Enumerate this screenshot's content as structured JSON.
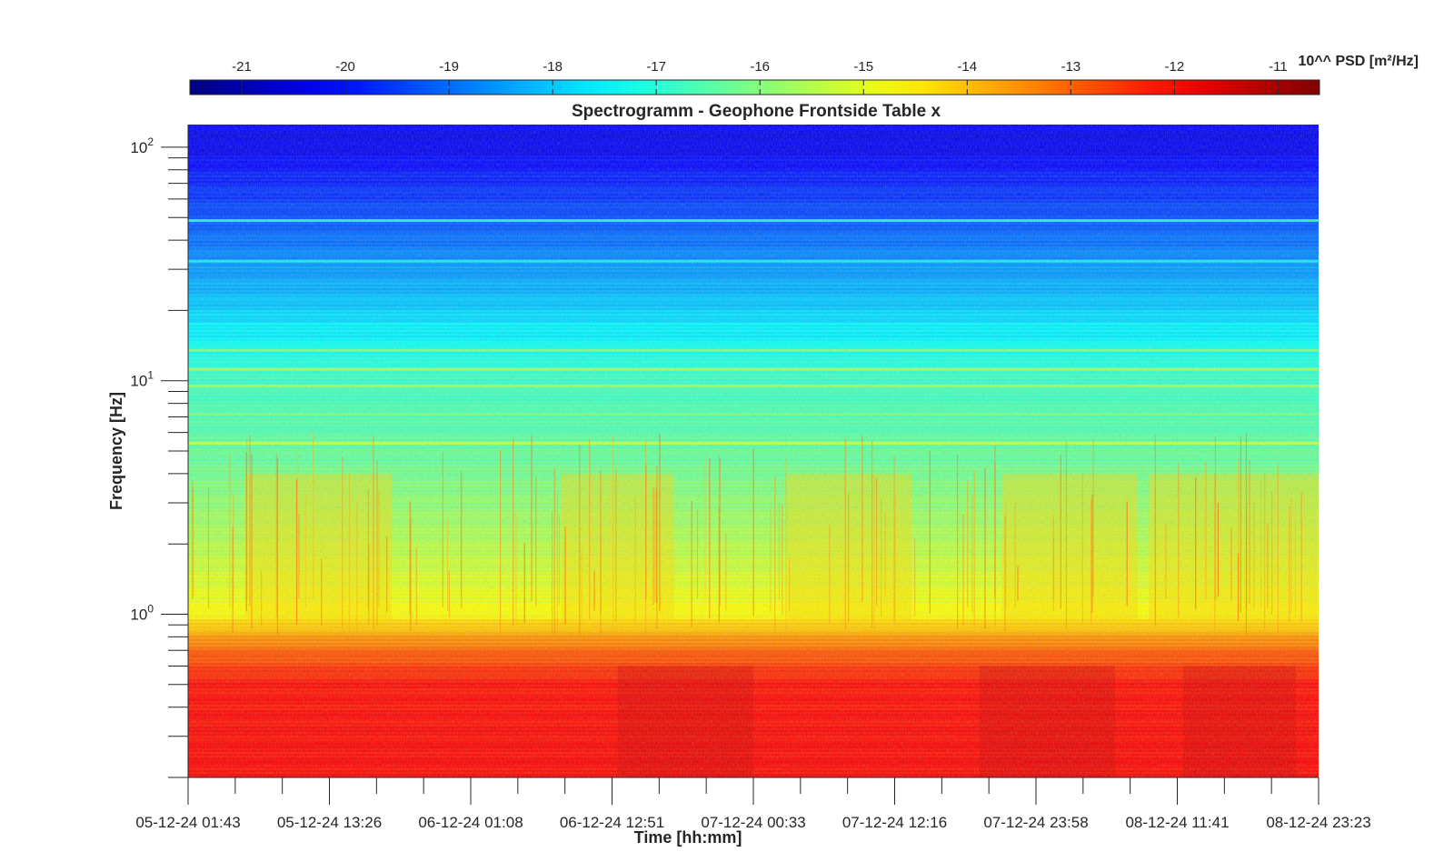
{
  "figure": {
    "title": "Spectrogramm - Geophone Frontside Table x",
    "xlabel": "Time [hh:mm]",
    "ylabel": "Frequency [Hz]",
    "colorbar_label": "10^^ PSD [m²/Hz]"
  },
  "chart_data": {
    "type": "heatmap",
    "title": "Spectrogramm - Geophone Frontside Table x",
    "xlabel": "Time [hh:mm]",
    "ylabel": "Frequency [Hz]",
    "x_tick_labels": [
      "05-12-24 01:43",
      "05-12-24 13:26",
      "06-12-24 01:08",
      "06-12-24 12:51",
      "07-12-24 00:33",
      "07-12-24 12:16",
      "07-12-24 23:58",
      "08-12-24 11:41",
      "08-12-24 23:23"
    ],
    "xlim": [
      "05-12-24 01:43",
      "08-12-24 23:23"
    ],
    "y_scale": "log",
    "ylim": [
      0.2,
      125
    ],
    "y_ticks": [
      1,
      10,
      100
    ],
    "y_tick_labels": [
      "10^0",
      "10^1",
      "10^2"
    ],
    "colorbar": {
      "label": "10^^ PSD [m²/Hz]",
      "ticks": [
        -21,
        -20,
        -19,
        -18,
        -17,
        -16,
        -15,
        -14,
        -13,
        -12,
        -11
      ],
      "range": [
        -21.5,
        -10.6
      ],
      "colormap": "jet",
      "placement": "top"
    },
    "psd_profile_log10": [
      {
        "frequency_hz": 0.25,
        "psd_log10": -12.0
      },
      {
        "frequency_hz": 0.5,
        "psd_log10": -12.1
      },
      {
        "frequency_hz": 0.7,
        "psd_log10": -13.0
      },
      {
        "frequency_hz": 1.0,
        "psd_log10": -14.7
      },
      {
        "frequency_hz": 2.0,
        "psd_log10": -15.5
      },
      {
        "frequency_hz": 5.0,
        "psd_log10": -16.4
      },
      {
        "frequency_hz": 10.0,
        "psd_log10": -16.8
      },
      {
        "frequency_hz": 20.0,
        "psd_log10": -17.9
      },
      {
        "frequency_hz": 50.0,
        "psd_log10": -19.3
      },
      {
        "frequency_hz": 100.0,
        "psd_log10": -20.3
      }
    ],
    "grid": false
  }
}
